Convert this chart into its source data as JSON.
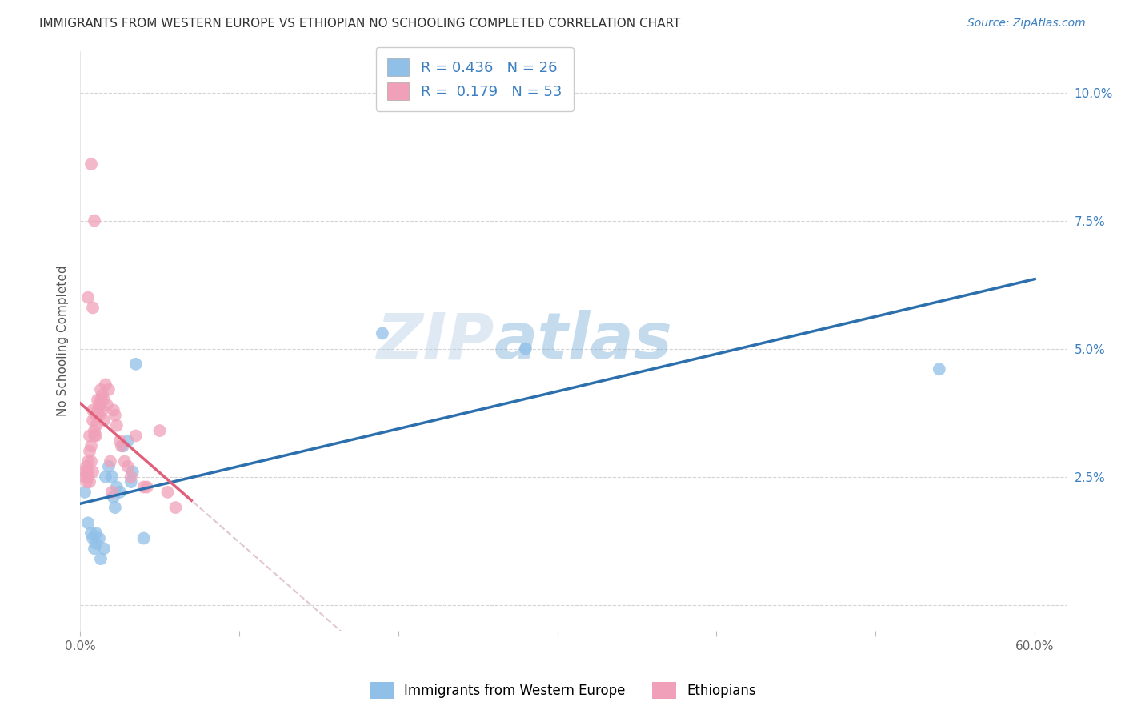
{
  "title": "IMMIGRANTS FROM WESTERN EUROPE VS ETHIOPIAN NO SCHOOLING COMPLETED CORRELATION CHART",
  "source": "Source: ZipAtlas.com",
  "ylabel": "No Schooling Completed",
  "xlim": [
    0.0,
    0.62
  ],
  "ylim": [
    -0.005,
    0.108
  ],
  "xticks": [
    0.0,
    0.1,
    0.2,
    0.3,
    0.4,
    0.5,
    0.6
  ],
  "xticklabels": [
    "0.0%",
    "",
    "",
    "",
    "",
    "",
    "60.0%"
  ],
  "ytick_positions": [
    0.0,
    0.025,
    0.05,
    0.075,
    0.1
  ],
  "ytick_labels": [
    "",
    "2.5%",
    "5.0%",
    "7.5%",
    "10.0%"
  ],
  "background_color": "#ffffff",
  "grid_color": "#d0d0d0",
  "blue_color": "#90c0e8",
  "pink_color": "#f0a0b8",
  "blue_line_color": "#2c6fad",
  "pink_line_color": "#e0607a",
  "pink_dash_color": "#d0a0b0",
  "legend_label_blue": "R = 0.436   N = 26",
  "legend_label_pink": "R =  0.179   N = 53",
  "blue_points_x": [
    0.003,
    0.005,
    0.007,
    0.008,
    0.009,
    0.01,
    0.01,
    0.012,
    0.013,
    0.015,
    0.016,
    0.018,
    0.02,
    0.021,
    0.022,
    0.023,
    0.025,
    0.027,
    0.03,
    0.032,
    0.033,
    0.035,
    0.04,
    0.19,
    0.28,
    0.54
  ],
  "blue_points_y": [
    0.022,
    0.016,
    0.014,
    0.013,
    0.011,
    0.014,
    0.012,
    0.013,
    0.009,
    0.011,
    0.025,
    0.027,
    0.025,
    0.021,
    0.019,
    0.023,
    0.022,
    0.031,
    0.032,
    0.024,
    0.026,
    0.047,
    0.013,
    0.053,
    0.05,
    0.046
  ],
  "pink_points_x": [
    0.003,
    0.003,
    0.004,
    0.004,
    0.005,
    0.005,
    0.005,
    0.006,
    0.006,
    0.006,
    0.007,
    0.007,
    0.007,
    0.008,
    0.008,
    0.008,
    0.009,
    0.009,
    0.009,
    0.01,
    0.01,
    0.01,
    0.011,
    0.011,
    0.012,
    0.012,
    0.013,
    0.013,
    0.014,
    0.014,
    0.015,
    0.015,
    0.016,
    0.017,
    0.018,
    0.019,
    0.02,
    0.021,
    0.022,
    0.023,
    0.025,
    0.026,
    0.028,
    0.03,
    0.032,
    0.035,
    0.04,
    0.042,
    0.05,
    0.055,
    0.06,
    0.005,
    0.008
  ],
  "pink_points_y": [
    0.025,
    0.026,
    0.024,
    0.027,
    0.025,
    0.026,
    0.028,
    0.024,
    0.03,
    0.033,
    0.031,
    0.028,
    0.086,
    0.026,
    0.036,
    0.038,
    0.034,
    0.033,
    0.075,
    0.033,
    0.035,
    0.037,
    0.038,
    0.04,
    0.037,
    0.039,
    0.04,
    0.042,
    0.041,
    0.038,
    0.036,
    0.04,
    0.043,
    0.039,
    0.042,
    0.028,
    0.022,
    0.038,
    0.037,
    0.035,
    0.032,
    0.031,
    0.028,
    0.027,
    0.025,
    0.033,
    0.023,
    0.023,
    0.034,
    0.022,
    0.019,
    0.06,
    0.058
  ],
  "watermark_left": "ZIP",
  "watermark_right": "atlas",
  "watermark_color_left": "#b8cfe8",
  "watermark_color_right": "#7ab0d8",
  "watermark_alpha": 0.45
}
